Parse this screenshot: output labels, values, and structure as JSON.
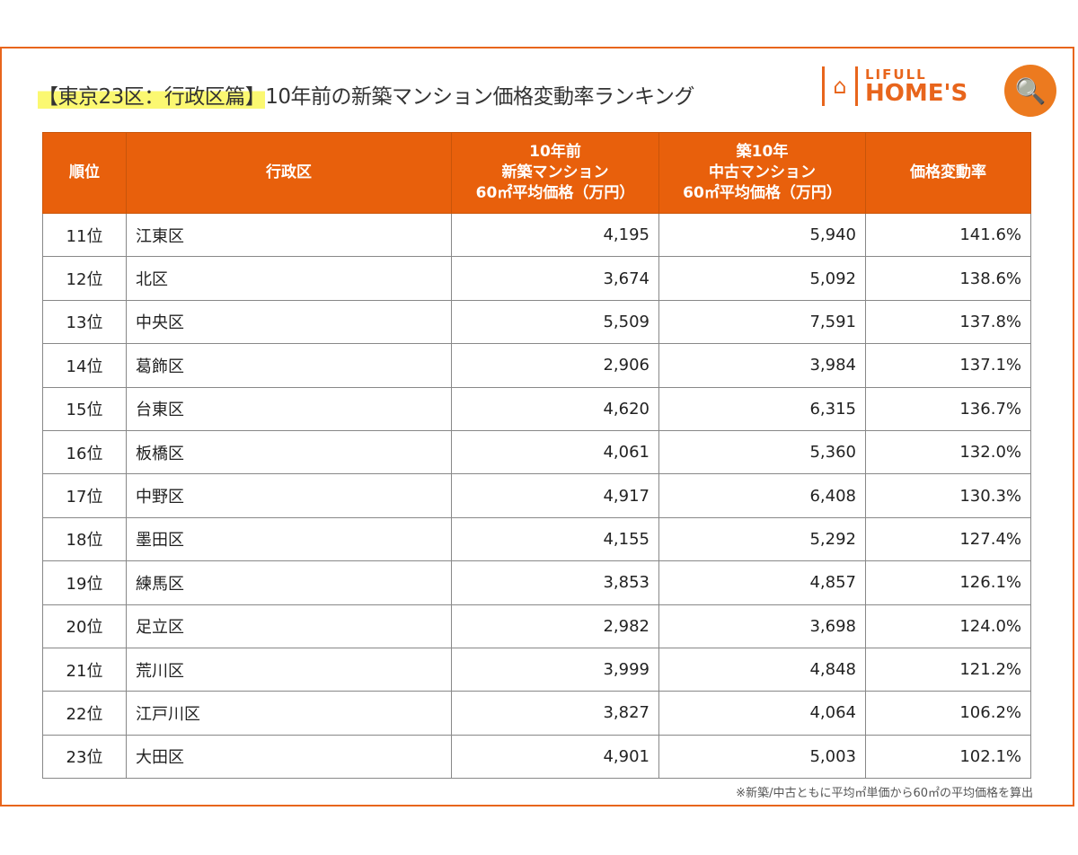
{
  "title": {
    "highlight": "【東京23区：行政区篇】",
    "rest": "10年前の新築マンション価格変動率ランキング"
  },
  "logo": {
    "line1": "LIFULL",
    "line2": "HOME'S"
  },
  "headers": [
    "順位",
    "行政区",
    "10年前\n新築マンション\n60㎡平均価格（万円）",
    "築10年\n中古マンション\n60㎡平均価格（万円）",
    "価格変動率"
  ],
  "rows": [
    [
      "11位",
      "江東区",
      "4,195",
      "5,940",
      "141.6%"
    ],
    [
      "12位",
      "北区",
      "3,674",
      "5,092",
      "138.6%"
    ],
    [
      "13位",
      "中央区",
      "5,509",
      "7,591",
      "137.8%"
    ],
    [
      "14位",
      "葛飾区",
      "2,906",
      "3,984",
      "137.1%"
    ],
    [
      "15位",
      "台東区",
      "4,620",
      "6,315",
      "136.7%"
    ],
    [
      "16位",
      "板橋区",
      "4,061",
      "5,360",
      "132.0%"
    ],
    [
      "17位",
      "中野区",
      "4,917",
      "6,408",
      "130.3%"
    ],
    [
      "18位",
      "墨田区",
      "4,155",
      "5,292",
      "127.4%"
    ],
    [
      "19位",
      "練馬区",
      "3,853",
      "4,857",
      "126.1%"
    ],
    [
      "20位",
      "足立区",
      "2,982",
      "3,698",
      "124.0%"
    ],
    [
      "21位",
      "荒川区",
      "3,999",
      "4,848",
      "121.2%"
    ],
    [
      "22位",
      "江戸川区",
      "3,827",
      "4,064",
      "106.2%"
    ],
    [
      "23位",
      "大田区",
      "4,901",
      "5,003",
      "102.1%"
    ]
  ],
  "footnote": "※新築/中古ともに平均㎡単価から60㎡の平均価格を算出"
}
